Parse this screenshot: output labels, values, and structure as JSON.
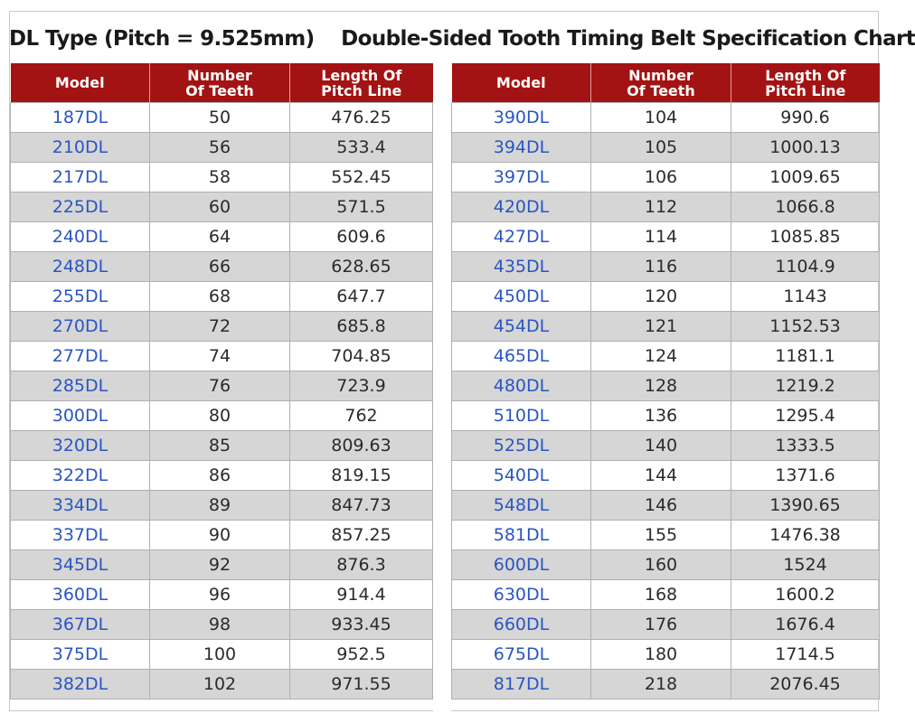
{
  "title": "DL Type (Pitch = 9.525mm)    Double-Sided Tooth Timing Belt Specification Chart",
  "headers": {
    "model": "Model",
    "teeth_line1": "Number",
    "teeth_line2": "Of Teeth",
    "length_line1": "Length Of",
    "length_line2": "Pitch Line"
  },
  "colors": {
    "header_bg": "#a31313",
    "header_text": "#ffffff",
    "model_text": "#2a55c2",
    "alt_row_bg": "#d6d6d6"
  },
  "left_rows": [
    {
      "model": "187DL",
      "teeth": "50",
      "length": "476.25"
    },
    {
      "model": "210DL",
      "teeth": "56",
      "length": "533.4"
    },
    {
      "model": "217DL",
      "teeth": "58",
      "length": "552.45"
    },
    {
      "model": "225DL",
      "teeth": "60",
      "length": "571.5"
    },
    {
      "model": "240DL",
      "teeth": "64",
      "length": "609.6"
    },
    {
      "model": "248DL",
      "teeth": "66",
      "length": "628.65"
    },
    {
      "model": "255DL",
      "teeth": "68",
      "length": "647.7"
    },
    {
      "model": "270DL",
      "teeth": "72",
      "length": "685.8"
    },
    {
      "model": "277DL",
      "teeth": "74",
      "length": "704.85"
    },
    {
      "model": "285DL",
      "teeth": "76",
      "length": "723.9"
    },
    {
      "model": "300DL",
      "teeth": "80",
      "length": "762"
    },
    {
      "model": "320DL",
      "teeth": "85",
      "length": "809.63"
    },
    {
      "model": "322DL",
      "teeth": "86",
      "length": "819.15"
    },
    {
      "model": "334DL",
      "teeth": "89",
      "length": "847.73"
    },
    {
      "model": "337DL",
      "teeth": "90",
      "length": "857.25"
    },
    {
      "model": "345DL",
      "teeth": "92",
      "length": "876.3"
    },
    {
      "model": "360DL",
      "teeth": "96",
      "length": "914.4"
    },
    {
      "model": "367DL",
      "teeth": "98",
      "length": "933.45"
    },
    {
      "model": "375DL",
      "teeth": "100",
      "length": "952.5"
    },
    {
      "model": "382DL",
      "teeth": "102",
      "length": "971.55"
    }
  ],
  "right_rows": [
    {
      "model": "390DL",
      "teeth": "104",
      "length": "990.6"
    },
    {
      "model": "394DL",
      "teeth": "105",
      "length": "1000.13"
    },
    {
      "model": "397DL",
      "teeth": "106",
      "length": "1009.65"
    },
    {
      "model": "420DL",
      "teeth": "112",
      "length": "1066.8"
    },
    {
      "model": "427DL",
      "teeth": "114",
      "length": "1085.85"
    },
    {
      "model": "435DL",
      "teeth": "116",
      "length": "1104.9"
    },
    {
      "model": "450DL",
      "teeth": "120",
      "length": "1143"
    },
    {
      "model": "454DL",
      "teeth": "121",
      "length": "1152.53"
    },
    {
      "model": "465DL",
      "teeth": "124",
      "length": "1181.1"
    },
    {
      "model": "480DL",
      "teeth": "128",
      "length": "1219.2"
    },
    {
      "model": "510DL",
      "teeth": "136",
      "length": "1295.4"
    },
    {
      "model": "525DL",
      "teeth": "140",
      "length": "1333.5"
    },
    {
      "model": "540DL",
      "teeth": "144",
      "length": "1371.6"
    },
    {
      "model": "548DL",
      "teeth": "146",
      "length": "1390.65"
    },
    {
      "model": "581DL",
      "teeth": "155",
      "length": "1476.38"
    },
    {
      "model": "600DL",
      "teeth": "160",
      "length": "1524"
    },
    {
      "model": "630DL",
      "teeth": "168",
      "length": "1600.2"
    },
    {
      "model": "660DL",
      "teeth": "176",
      "length": "1676.4"
    },
    {
      "model": "675DL",
      "teeth": "180",
      "length": "1714.5"
    },
    {
      "model": "817DL",
      "teeth": "218",
      "length": "2076.45"
    }
  ]
}
